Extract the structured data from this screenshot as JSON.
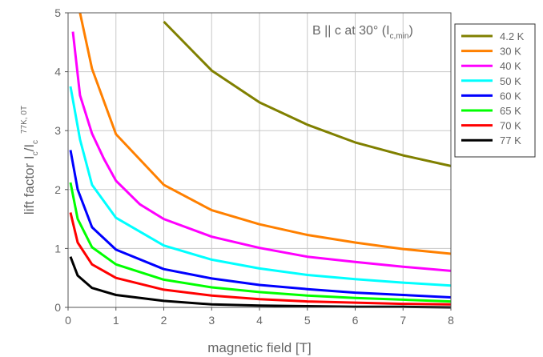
{
  "chart_data": {
    "type": "line",
    "annotation": {
      "main": "B || c at 30° (I",
      "sub": "c,min",
      "close": ")"
    },
    "xlabel": "magnetic field [T]",
    "ylabel": {
      "main": "lift factor I",
      "sub1": "c",
      "mid": "/I",
      "sub2": "c",
      "sup": "77K, 0T"
    },
    "xlim": [
      0,
      8
    ],
    "ylim": [
      0,
      5
    ],
    "xticks": [
      0,
      1,
      2,
      3,
      4,
      5,
      6,
      7,
      8
    ],
    "yticks": [
      0,
      1,
      2,
      3,
      4,
      5
    ],
    "grid": true,
    "legend_position": "top-right",
    "series": [
      {
        "name": "4.2 K",
        "color": "#808000",
        "x": [
          2,
          3,
          4,
          5,
          6,
          7,
          8
        ],
        "y": [
          4.85,
          4.02,
          3.48,
          3.1,
          2.8,
          2.58,
          2.4
        ]
      },
      {
        "name": "30 K",
        "color": "#ff8000",
        "x": [
          0.25,
          0.5,
          1,
          2,
          3,
          4,
          5,
          6,
          7,
          8
        ],
        "y": [
          5.0,
          4.05,
          2.94,
          2.08,
          1.65,
          1.41,
          1.23,
          1.1,
          0.99,
          0.91
        ]
      },
      {
        "name": "40 K",
        "color": "#ff00ff",
        "x": [
          0.1,
          0.25,
          0.5,
          0.75,
          1,
          1.5,
          2,
          3,
          4,
          5,
          6,
          7,
          8
        ],
        "y": [
          4.68,
          3.6,
          2.95,
          2.52,
          2.15,
          1.75,
          1.5,
          1.2,
          1.01,
          0.86,
          0.77,
          0.69,
          0.62
        ]
      },
      {
        "name": "50 K",
        "color": "#00ffff",
        "x": [
          0.05,
          0.25,
          0.5,
          1,
          2,
          3,
          4,
          5,
          6,
          7,
          8
        ],
        "y": [
          3.75,
          2.85,
          2.08,
          1.52,
          1.05,
          0.81,
          0.66,
          0.55,
          0.48,
          0.42,
          0.37
        ]
      },
      {
        "name": "60 K",
        "color": "#0000ff",
        "x": [
          0.05,
          0.2,
          0.5,
          1,
          2,
          3,
          4,
          5,
          6,
          7,
          8
        ],
        "y": [
          2.67,
          2.0,
          1.36,
          0.98,
          0.65,
          0.49,
          0.38,
          0.31,
          0.25,
          0.21,
          0.17
        ]
      },
      {
        "name": "65 K",
        "color": "#00ff00",
        "x": [
          0.05,
          0.2,
          0.5,
          1,
          2,
          3,
          4,
          5,
          6,
          7,
          8
        ],
        "y": [
          2.12,
          1.5,
          1.02,
          0.73,
          0.47,
          0.34,
          0.26,
          0.2,
          0.16,
          0.13,
          0.1
        ]
      },
      {
        "name": "70 K",
        "color": "#ff0000",
        "x": [
          0.05,
          0.2,
          0.5,
          1,
          2,
          3,
          4,
          5,
          6,
          7,
          8
        ],
        "y": [
          1.61,
          1.1,
          0.73,
          0.5,
          0.3,
          0.2,
          0.14,
          0.1,
          0.08,
          0.06,
          0.05
        ]
      },
      {
        "name": "77 K",
        "color": "#000000",
        "x": [
          0.05,
          0.2,
          0.5,
          1,
          2,
          3,
          4,
          5,
          6,
          7,
          8
        ],
        "y": [
          0.86,
          0.54,
          0.33,
          0.21,
          0.11,
          0.05,
          0.03,
          0.02,
          0.01,
          0.01,
          0.0
        ]
      }
    ]
  }
}
